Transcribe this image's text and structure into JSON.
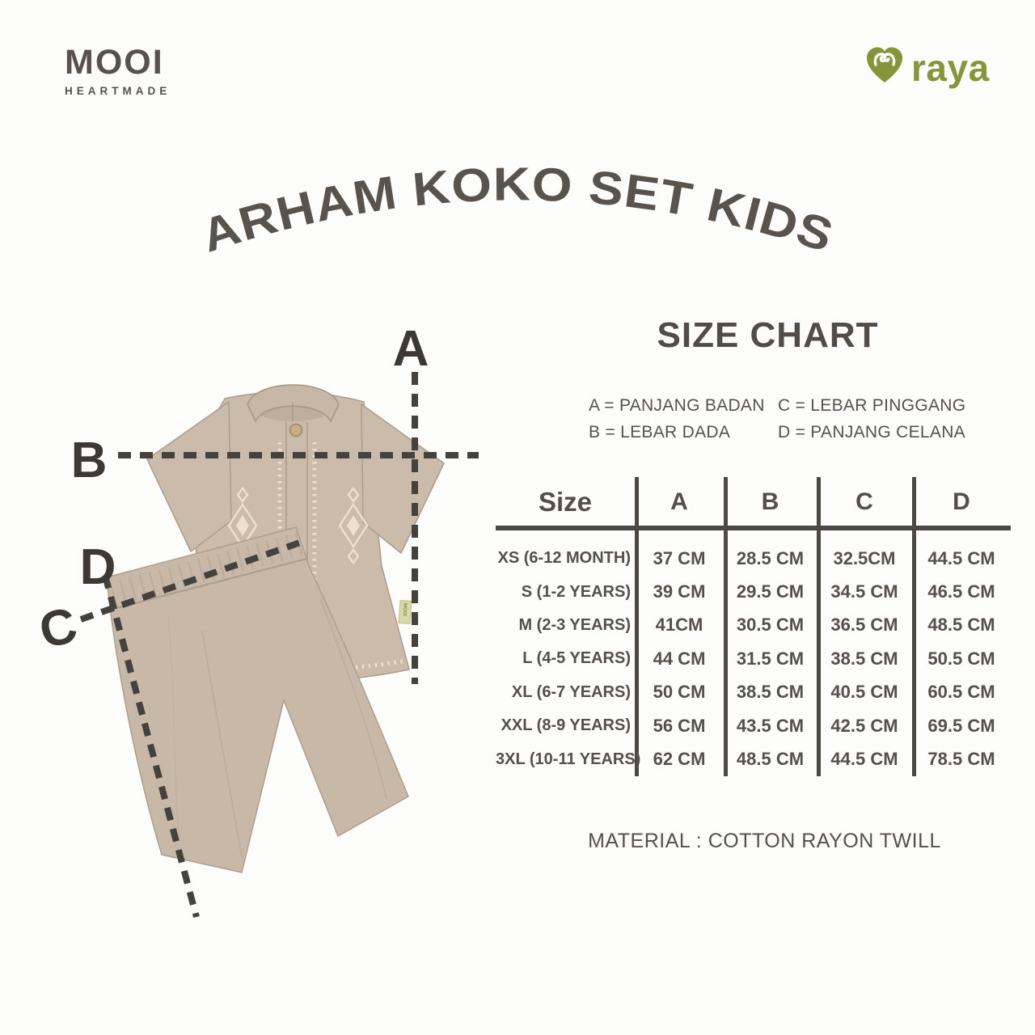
{
  "brand": {
    "name": "MOOI",
    "tagline": "HEARTMADE"
  },
  "partner": {
    "name": "raya",
    "icon": "heart-icon"
  },
  "title": "ARHAM KOKO SET KIDS",
  "size_chart": {
    "heading": "SIZE CHART",
    "legend": [
      "A = PANJANG BADAN",
      "B = LEBAR DADA",
      "C = LEBAR PINGGANG",
      "D = PANJANG CELANA"
    ],
    "table": {
      "columns": [
        "Size",
        "A",
        "B",
        "C",
        "D"
      ],
      "rows": [
        [
          "XS (6-12 MONTH)",
          "37 CM",
          "28.5 CM",
          "32.5CM",
          "44.5 CM"
        ],
        [
          "S (1-2 YEARS)",
          "39 CM",
          "29.5 CM",
          "34.5 CM",
          "46.5 CM"
        ],
        [
          "M (2-3 YEARS)",
          "41CM",
          "30.5 CM",
          "36.5 CM",
          "48.5 CM"
        ],
        [
          "L (4-5 YEARS)",
          "44 CM",
          "31.5 CM",
          "38.5 CM",
          "50.5 CM"
        ],
        [
          "XL (6-7 YEARS)",
          "50 CM",
          "38.5 CM",
          "40.5 CM",
          "60.5 CM"
        ],
        [
          "XXL (8-9 YEARS)",
          "56 CM",
          "43.5 CM",
          "42.5 CM",
          "69.5 CM"
        ],
        [
          "3XL (10-11 YEARS)",
          "62 CM",
          "48.5 CM",
          "44.5 CM",
          "78.5 CM"
        ]
      ]
    },
    "material": "MATERIAL : COTTON RAYON TWILL"
  },
  "diagram": {
    "markers": [
      "A",
      "B",
      "C",
      "D"
    ],
    "tag_label": "MOOI"
  },
  "colors": {
    "background": "#fcfcfb",
    "text_dark": "#55504b",
    "marker_dark": "#3c3935",
    "raya_green": "#87953a",
    "garment_beige": "#cabbaa",
    "pants_beige": "#c7b8a7",
    "embroidery_cream": "#ece1cb",
    "tag_green": "#d6d9a8",
    "table_line": "#4c4844"
  }
}
